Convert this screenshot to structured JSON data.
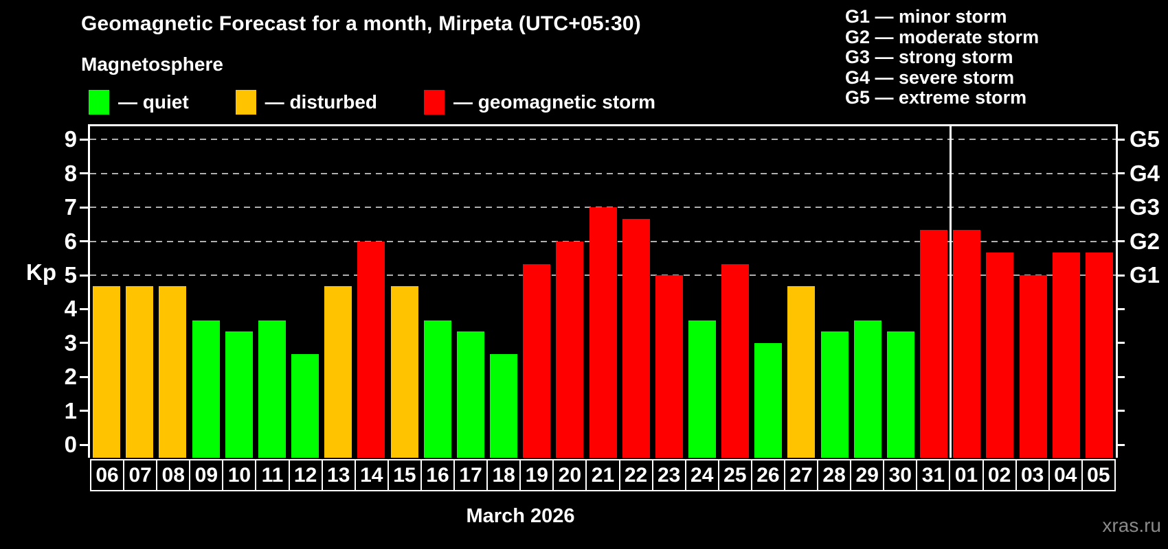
{
  "header": {
    "title": "Geomagnetic Forecast for a month, Mirpeta (UTC+05:30)",
    "subtitle": "Magnetosphere"
  },
  "legend": [
    {
      "key": "quiet",
      "label": "— quiet",
      "color": "#00ff00"
    },
    {
      "key": "disturbed",
      "label": "— disturbed",
      "color": "#ffc300"
    },
    {
      "key": "storm",
      "label": "— geomagnetic storm",
      "color": "#ff0000"
    }
  ],
  "g_legend": [
    "G1 — minor storm",
    "G2 — moderate storm",
    "G3 — strong storm",
    "G4 — severe storm",
    "G5 — extreme storm"
  ],
  "colors": {
    "quiet": "#00ff00",
    "disturbed": "#ffc300",
    "storm": "#ff0000",
    "grid": "#b0b0b0",
    "frame": "#ffffff",
    "watermark": "#8a8a8a"
  },
  "chart_data": {
    "type": "bar",
    "title": "Geomagnetic Forecast for a month, Mirpeta (UTC+05:30)",
    "ylabel": "Kp",
    "xlabel": "March 2026",
    "ylim": [
      0,
      9
    ],
    "yticks": [
      0,
      1,
      2,
      3,
      4,
      5,
      6,
      7,
      8,
      9
    ],
    "grid": true,
    "gridlines_at": [
      5,
      6,
      7,
      8,
      9
    ],
    "legend_position": "top",
    "right_axis": [
      {
        "value": 5,
        "label": "G1"
      },
      {
        "value": 6,
        "label": "G2"
      },
      {
        "value": 7,
        "label": "G3"
      },
      {
        "value": 8,
        "label": "G4"
      },
      {
        "value": 9,
        "label": "G5"
      }
    ],
    "categories": [
      "06",
      "07",
      "08",
      "09",
      "10",
      "11",
      "12",
      "13",
      "14",
      "15",
      "16",
      "17",
      "18",
      "19",
      "20",
      "21",
      "22",
      "23",
      "24",
      "25",
      "26",
      "27",
      "28",
      "29",
      "30",
      "31",
      "01",
      "02",
      "03",
      "04",
      "05"
    ],
    "values": [
      4.67,
      4.67,
      4.67,
      3.67,
      3.33,
      3.67,
      2.67,
      4.67,
      6.0,
      4.67,
      3.67,
      3.33,
      2.67,
      5.33,
      6.0,
      7.0,
      6.67,
      5.0,
      3.67,
      5.33,
      3.0,
      4.67,
      3.33,
      3.67,
      3.33,
      6.33,
      6.33,
      5.67,
      5.0,
      5.67,
      5.67
    ],
    "levels": [
      "disturbed",
      "disturbed",
      "disturbed",
      "quiet",
      "quiet",
      "quiet",
      "quiet",
      "disturbed",
      "storm",
      "disturbed",
      "quiet",
      "quiet",
      "quiet",
      "storm",
      "storm",
      "storm",
      "storm",
      "storm",
      "quiet",
      "storm",
      "quiet",
      "disturbed",
      "quiet",
      "quiet",
      "quiet",
      "storm",
      "storm",
      "storm",
      "storm",
      "storm",
      "storm"
    ],
    "month_boundary_after": "31"
  },
  "footer": {
    "month_label": "March 2026",
    "watermark": "xras.ru"
  }
}
